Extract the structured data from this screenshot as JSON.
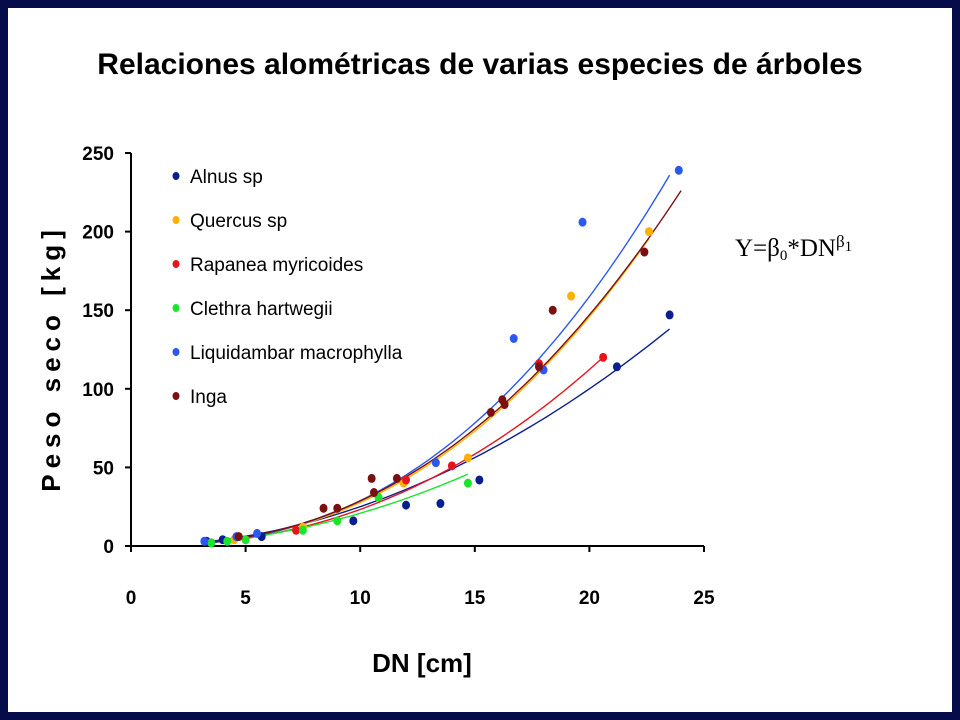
{
  "chart_data": {
    "type": "scatter",
    "title": "Relaciones alométricas de varias especies de árboles",
    "xlabel": "DN [cm]",
    "ylabel": "Peso seco [kg]",
    "xlim": [
      0,
      25
    ],
    "ylim": [
      0,
      250
    ],
    "xticks": [
      0,
      5,
      10,
      15,
      20,
      25
    ],
    "yticks": [
      0,
      50,
      100,
      150,
      200,
      250
    ],
    "grid": false,
    "legend_position": "top-left",
    "series": [
      {
        "name": "Alnus sp",
        "color": "#0a1f8f",
        "points": [
          [
            3.3,
            3
          ],
          [
            4,
            4
          ],
          [
            5.7,
            6
          ],
          [
            9.7,
            16
          ],
          [
            12,
            26
          ],
          [
            13.5,
            27
          ],
          [
            15.2,
            42
          ],
          [
            21.2,
            114
          ],
          [
            23.5,
            147
          ]
        ],
        "fit": {
          "b0": 0.25,
          "b1": 2.0,
          "xrange": [
            3.3,
            23.5
          ]
        }
      },
      {
        "name": "Quercus sp",
        "color": "#ffb000",
        "points": [
          [
            4.5,
            4
          ],
          [
            7.5,
            12
          ],
          [
            11.9,
            40
          ],
          [
            14.7,
            56
          ],
          [
            19.2,
            159
          ],
          [
            22.6,
            200
          ]
        ],
        "fit": {
          "b0": 0.11,
          "b1": 2.4,
          "xrange": [
            3.5,
            22.6
          ]
        }
      },
      {
        "name": "Rapanea myricoides",
        "color": "#e8141c",
        "points": [
          [
            3.5,
            2
          ],
          [
            5,
            4
          ],
          [
            7.2,
            10
          ],
          [
            12,
            42
          ],
          [
            14,
            51
          ],
          [
            17.8,
            116
          ],
          [
            20.6,
            120
          ]
        ],
        "fit": {
          "b0": 0.125,
          "b1": 2.27,
          "xrange": [
            3.5,
            20.6
          ]
        }
      },
      {
        "name": "Clethra hartwegii",
        "color": "#19e62a",
        "points": [
          [
            3.5,
            2
          ],
          [
            4.2,
            3
          ],
          [
            5,
            4
          ],
          [
            7.5,
            10
          ],
          [
            9,
            16
          ],
          [
            10.8,
            31
          ],
          [
            14.7,
            40
          ]
        ],
        "fit": {
          "b0": 0.19,
          "b1": 2.04,
          "xrange": [
            3.4,
            14.7
          ]
        }
      },
      {
        "name": "Liquidambar macrophylla",
        "color": "#2a58f0",
        "points": [
          [
            3.2,
            3
          ],
          [
            4.6,
            6
          ],
          [
            5.5,
            8
          ],
          [
            13.3,
            53
          ],
          [
            16.7,
            132
          ],
          [
            18,
            112
          ],
          [
            19.7,
            206
          ],
          [
            23.9,
            239
          ]
        ],
        "fit": {
          "b0": 0.1,
          "b1": 2.46,
          "xrange": [
            3.2,
            23.5
          ]
        }
      },
      {
        "name": "Inga",
        "color": "#7a1010",
        "points": [
          [
            4.7,
            6
          ],
          [
            8.4,
            24
          ],
          [
            9,
            24
          ],
          [
            10.5,
            43
          ],
          [
            10.6,
            34
          ],
          [
            11.6,
            43
          ],
          [
            15.7,
            85
          ],
          [
            16.3,
            90
          ],
          [
            16.2,
            93
          ],
          [
            17.8,
            114
          ],
          [
            18.4,
            150
          ],
          [
            22.4,
            187
          ]
        ],
        "fit": {
          "b0": 0.125,
          "b1": 2.36,
          "xrange": [
            3.5,
            24
          ]
        }
      }
    ]
  },
  "formula": {
    "lhs": "Y=β",
    "b0_subscript": "0",
    "mid": "*DN",
    "exp_symbol": "β",
    "exp_subscript": "1"
  }
}
